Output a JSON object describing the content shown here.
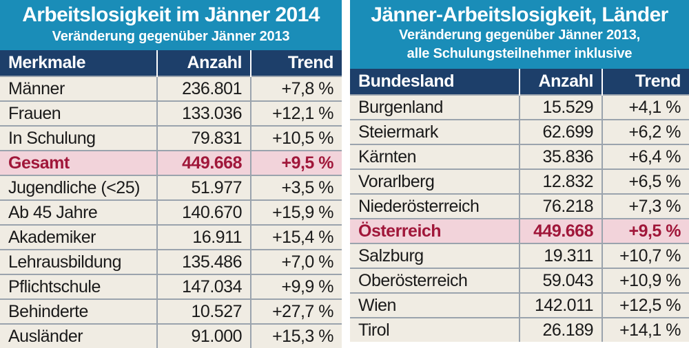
{
  "left": {
    "title": "Arbeitslosigkeit im Jänner 2014",
    "subtitle": "Veränderung gegenüber Jänner 2013",
    "headers": [
      "Merkmale",
      "Anzahl",
      "Trend"
    ],
    "rows": [
      {
        "label": "Männer",
        "count": "236.801",
        "trend": "+7,8 %"
      },
      {
        "label": "Frauen",
        "count": "133.036",
        "trend": "+12,1 %"
      },
      {
        "label": "In Schulung",
        "count": "79.831",
        "trend": "+10,5 %"
      },
      {
        "label": "Gesamt",
        "count": "449.668",
        "trend": "+9,5 %",
        "highlight": true
      },
      {
        "label": "Jugendliche (<25)",
        "count": "51.977",
        "trend": "+3,5 %"
      },
      {
        "label": "Ab 45 Jahre",
        "count": "140.670",
        "trend": "+15,9 %"
      },
      {
        "label": "Akademiker",
        "count": "16.911",
        "trend": "+15,4 %"
      },
      {
        "label": "Lehrausbildung",
        "count": "135.486",
        "trend": "+7,0 %"
      },
      {
        "label": "Pflichtschule",
        "count": "147.034",
        "trend": "+9,9 %"
      },
      {
        "label": "Behinderte",
        "count": "10.527",
        "trend": "+27,7 %"
      },
      {
        "label": "Ausländer",
        "count": "91.000",
        "trend": "+15,3 %"
      }
    ]
  },
  "right": {
    "title": "Jänner-Arbeitslosigkeit, Länder",
    "subtitle_line1": "Veränderung gegenüber Jänner 2013,",
    "subtitle_line2": "alle Schulungsteilnehmer inklusive",
    "headers": [
      "Bundesland",
      "Anzahl",
      "Trend"
    ],
    "rows": [
      {
        "label": "Burgenland",
        "count": "15.529",
        "trend": "+4,1 %"
      },
      {
        "label": "Steiermark",
        "count": "62.699",
        "trend": "+6,2 %"
      },
      {
        "label": "Kärnten",
        "count": "35.836",
        "trend": "+6,4 %"
      },
      {
        "label": "Vorarlberg",
        "count": "12.832",
        "trend": "+6,5 %"
      },
      {
        "label": "Niederösterreich",
        "count": "76.218",
        "trend": "+7,3 %"
      },
      {
        "label": "Österreich",
        "count": "449.668",
        "trend": "+9,5 %",
        "highlight": true
      },
      {
        "label": "Salzburg",
        "count": "19.311",
        "trend": "+10,7 %"
      },
      {
        "label": "Oberösterreich",
        "count": "59.043",
        "trend": "+10,9 %"
      },
      {
        "label": "Wien",
        "count": "142.011",
        "trend": "+12,5 %"
      },
      {
        "label": "Tirol",
        "count": "26.189",
        "trend": "+14,1 %"
      }
    ]
  }
}
